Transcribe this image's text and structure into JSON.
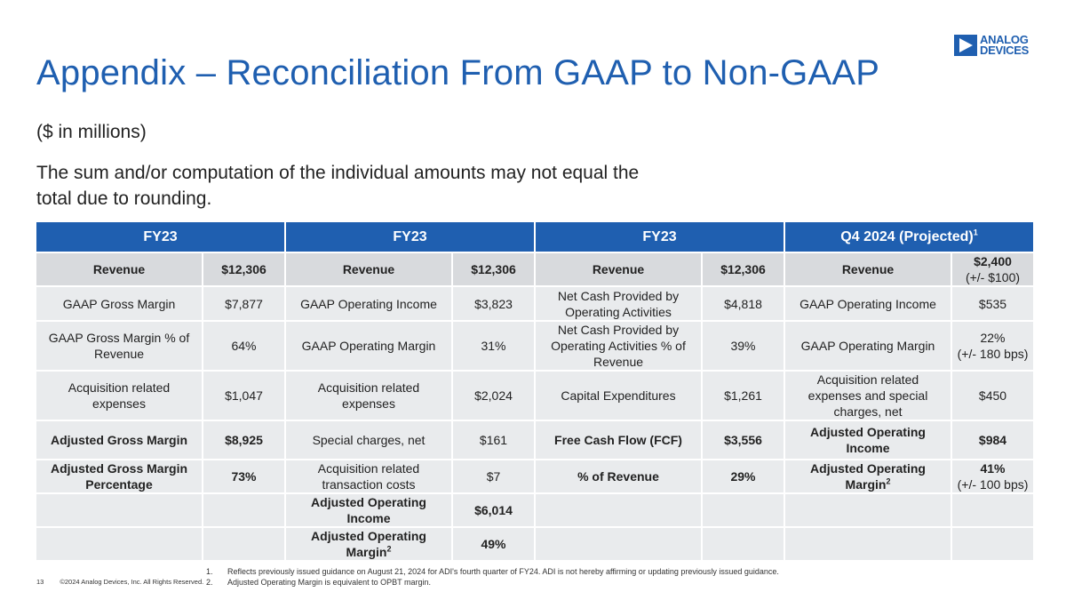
{
  "brand": {
    "logo_line1": "ANALOG",
    "logo_line2": "DEVICES",
    "color": "#1f5fb0"
  },
  "title": "Appendix – Reconciliation From GAAP to Non-GAAP",
  "subtitle": "($ in millions)",
  "note": "The sum and/or computation of the individual amounts may not equal the total due to rounding.",
  "table": {
    "headers": [
      "FY23",
      "FY23",
      "FY23",
      "Q4 2024 (Projected)"
    ],
    "header_sup": "1",
    "rows": [
      [
        "Revenue",
        "$12,306",
        "Revenue",
        "$12,306",
        "Revenue",
        "$12,306",
        "Revenue",
        "$2,400 (+/- $100)"
      ],
      [
        "GAAP Gross Margin",
        "$7,877",
        "GAAP Operating Income",
        "$3,823",
        "Net Cash Provided by Operating Activities",
        "$4,818",
        "GAAP Operating Income",
        "$535"
      ],
      [
        "GAAP Gross Margin % of Revenue",
        "64%",
        "GAAP Operating Margin",
        "31%",
        "Net Cash Provided by Operating Activities % of Revenue",
        "39%",
        "GAAP Operating Margin",
        "22% (+/- 180 bps)"
      ],
      [
        "Acquisition related expenses",
        "$1,047",
        "Acquisition related expenses",
        "$2,024",
        "Capital Expenditures",
        "$1,261",
        "Acquisition related expenses and special charges, net",
        "$450"
      ],
      [
        "Adjusted Gross Margin",
        "$8,925",
        "Special charges, net",
        "$161",
        "Free Cash Flow (FCF)",
        "$3,556",
        "Adjusted Operating Income",
        "$984"
      ],
      [
        "Adjusted Gross Margin Percentage",
        "73%",
        "Acquisition related transaction costs",
        "$7",
        "% of Revenue",
        "29%",
        "Adjusted Operating Margin",
        "41% (+/- 100 bps)"
      ],
      [
        "",
        "",
        "Adjusted Operating Income",
        "$6,014",
        "",
        "",
        "",
        ""
      ],
      [
        "",
        "",
        "Adjusted Operating Margin",
        "49%",
        "",
        "",
        "",
        ""
      ]
    ],
    "row_sups": {
      "r6c7": "2",
      "r8c3": "2"
    }
  },
  "footnotes": [
    {
      "num": "1.",
      "text": "Reflects previously issued guidance on August 21, 2024 for ADI's fourth quarter of FY24. ADI is not hereby affirming or updating previously issued guidance."
    },
    {
      "num": "2.",
      "text": "Adjusted Operating Margin is equivalent to OPBT margin."
    }
  ],
  "footer": {
    "page": "13",
    "copyright": "©2024 Analog Devices, Inc. All Rights Reserved."
  }
}
